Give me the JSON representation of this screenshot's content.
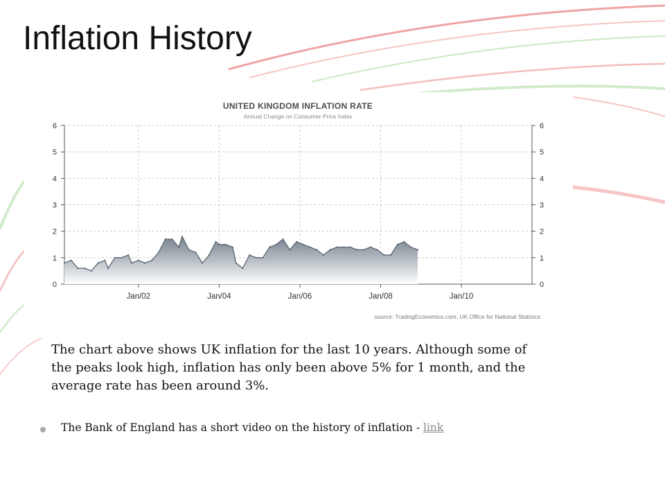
{
  "slide": {
    "title": "Inflation History",
    "body_text": "The chart above shows UK inflation for the last 10 years. Although some of  the peaks look high, inflation has only been above 5% for 1 month, and the average rate has been around 3%.",
    "bullet": {
      "text": "The Bank of England has a short video on the history of inflation - ",
      "link_label": "link"
    }
  },
  "colors": {
    "line": "#5a6470",
    "fill_top": "#6f7b88",
    "fill_bottom": "#ffffff",
    "grid": "#c8c8c8",
    "link": "#8a8a8a",
    "decor_red": "#e45a5a",
    "decor_green": "#7cc36b"
  },
  "chart_data": {
    "type": "area",
    "title": "UNITED KINGDOM INFLATION RATE",
    "subtitle": "Annual Change on Consumer Price Index",
    "source": "source: TradingEconomics.com; UK Office for National Statistcs",
    "xlabel": "",
    "ylabel": "",
    "xlim": [
      "2000-03",
      "2011-10"
    ],
    "ylim": [
      0,
      6
    ],
    "y_ticks": [
      0,
      1,
      2,
      3,
      4,
      5,
      6
    ],
    "x_ticks": [
      {
        "label": "Jan/02",
        "date": "2002-01"
      },
      {
        "label": "Jan/04",
        "date": "2004-01"
      },
      {
        "label": "Jan/06",
        "date": "2006-01"
      },
      {
        "label": "Jan/08",
        "date": "2008-01"
      },
      {
        "label": "Jan/10",
        "date": "2010-01"
      }
    ],
    "grid": true,
    "dual_y_axis": true,
    "series": [
      {
        "points": [
          [
            "2000-03",
            0.8
          ],
          [
            "2000-05",
            0.9
          ],
          [
            "2000-07",
            0.6
          ],
          [
            "2000-09",
            0.6
          ],
          [
            "2000-11",
            0.5
          ],
          [
            "2001-01",
            0.8
          ],
          [
            "2001-03",
            0.9
          ],
          [
            "2001-04",
            0.6
          ],
          [
            "2001-06",
            1.0
          ],
          [
            "2001-08",
            1.0
          ],
          [
            "2001-10",
            1.1
          ],
          [
            "2001-11",
            0.8
          ],
          [
            "2002-01",
            0.9
          ],
          [
            "2002-03",
            0.8
          ],
          [
            "2002-05",
            0.9
          ],
          [
            "2002-07",
            1.2
          ],
          [
            "2002-09",
            1.7
          ],
          [
            "2002-11",
            1.7
          ],
          [
            "2003-01",
            1.4
          ],
          [
            "2003-02",
            1.8
          ],
          [
            "2003-04",
            1.3
          ],
          [
            "2003-06",
            1.2
          ],
          [
            "2003-08",
            0.8
          ],
          [
            "2003-10",
            1.1
          ],
          [
            "2003-12",
            1.6
          ],
          [
            "2004-01",
            1.5
          ],
          [
            "2004-03",
            1.5
          ],
          [
            "2004-05",
            1.4
          ],
          [
            "2004-06",
            0.8
          ],
          [
            "2004-08",
            0.6
          ],
          [
            "2004-10",
            1.1
          ],
          [
            "2004-12",
            1.0
          ],
          [
            "2005-02",
            1.0
          ],
          [
            "2005-04",
            1.4
          ],
          [
            "2005-06",
            1.5
          ],
          [
            "2005-08",
            1.7
          ],
          [
            "2005-10",
            1.3
          ],
          [
            "2005-12",
            1.6
          ],
          [
            "2006-02",
            1.5
          ],
          [
            "2006-04",
            1.4
          ],
          [
            "2006-06",
            1.3
          ],
          [
            "2006-08",
            1.1
          ],
          [
            "2006-10",
            1.3
          ],
          [
            "2006-12",
            1.4
          ],
          [
            "2007-02",
            1.4
          ],
          [
            "2007-04",
            1.4
          ],
          [
            "2007-06",
            1.3
          ],
          [
            "2007-08",
            1.3
          ],
          [
            "2007-10",
            1.4
          ],
          [
            "2007-12",
            1.3
          ],
          [
            "2008-02",
            1.1
          ],
          [
            "2008-04",
            1.1
          ],
          [
            "2008-06",
            1.5
          ],
          [
            "2008-08",
            1.6
          ],
          [
            "2008-10",
            1.4
          ],
          [
            "2008-12",
            1.3
          ]
        ]
      }
    ]
  }
}
